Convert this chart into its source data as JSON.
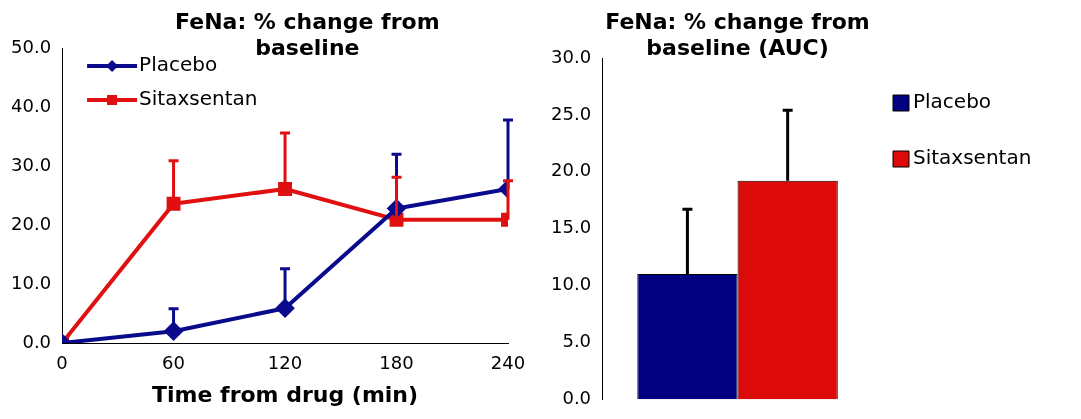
{
  "chart_data": [
    {
      "type": "line",
      "title": "FeNa: % change from baseline",
      "xlabel": "Time from drug (min)",
      "x": [
        0,
        60,
        120,
        180,
        240
      ],
      "xlim": [
        0,
        240
      ],
      "xticks": [
        0,
        60,
        120,
        180,
        240
      ],
      "ylim": [
        0,
        50
      ],
      "yticks": [
        {
          "value": 0,
          "label": "0.0"
        },
        {
          "value": 10,
          "label": "10.0"
        },
        {
          "value": 20,
          "label": "20.0"
        },
        {
          "value": 30,
          "label": "30.0"
        },
        {
          "value": 40,
          "label": "40.0"
        },
        {
          "value": 50,
          "label": "50.0"
        }
      ],
      "grid": false,
      "legend": "top left",
      "series": [
        {
          "name": "Placebo",
          "color": "#0a0a8c",
          "marker": "diamond",
          "values": [
            0,
            2.0,
            5.9,
            22.8,
            26.1
          ],
          "errors": [
            null,
            [
              2.0,
              5.8
            ],
            [
              5.9,
              12.6
            ],
            [
              22.8,
              32.0
            ],
            [
              26.1,
              37.8
            ]
          ]
        },
        {
          "name": "Sitaxsentan",
          "color": "#e01010",
          "marker": "square",
          "values": [
            0,
            23.6,
            26.1,
            20.9,
            20.9
          ],
          "errors": [
            null,
            [
              23.6,
              30.9
            ],
            [
              26.1,
              35.6
            ],
            [
              20.9,
              28.1
            ],
            [
              20.9,
              27.5
            ]
          ]
        }
      ]
    },
    {
      "type": "bar",
      "title": "FeNa: % change from baseline (AUC)",
      "categories": [
        null
      ],
      "ylim": [
        0,
        30
      ],
      "yticks": [
        {
          "value": 0,
          "label": "0.0"
        },
        {
          "value": 5,
          "label": "5.0"
        },
        {
          "value": 10,
          "label": "10.0"
        },
        {
          "value": 15,
          "label": "15.0"
        },
        {
          "value": 20,
          "label": "20.0"
        },
        {
          "value": 25,
          "label": "25.0"
        },
        {
          "value": 30,
          "label": "30.0"
        }
      ],
      "grid": false,
      "legend": "right",
      "series": [
        {
          "name": "Placebo",
          "color": "#000080",
          "values": [
            11.0
          ],
          "errors": [
            [
              11.0,
              16.7
            ]
          ]
        },
        {
          "name": "Sitaxsentan",
          "color": "#dd0a0a",
          "values": [
            19.2
          ],
          "errors": [
            [
              19.2,
              25.4
            ]
          ]
        }
      ]
    }
  ]
}
